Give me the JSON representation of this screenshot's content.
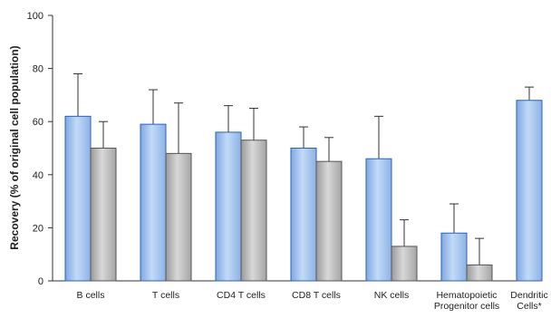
{
  "chart_data": {
    "type": "bar",
    "title": "",
    "xlabel": "",
    "ylabel": "Recovery (% of original cell population)",
    "ylim": [
      0,
      100
    ],
    "yticks": [
      0,
      20,
      40,
      60,
      80,
      100
    ],
    "grid": false,
    "categories": [
      [
        "B cells"
      ],
      [
        "T cells"
      ],
      [
        "CD4 T cells"
      ],
      [
        "CD8 T cells"
      ],
      [
        "NK cells"
      ],
      [
        "Hematopoietic",
        "Progenitor cells"
      ],
      [
        "Dendritic",
        "Cells*"
      ]
    ],
    "series": [
      {
        "color": "#a9c8f0",
        "edge": "#2a62b8",
        "values": [
          62,
          59,
          56,
          50,
          46,
          18,
          68
        ],
        "error_upper": [
          78,
          72,
          66,
          58,
          62,
          29,
          73
        ]
      },
      {
        "color": "#c4c4c4",
        "edge": "#555555",
        "values": [
          50,
          48,
          53,
          45,
          13,
          6,
          null
        ],
        "error_upper": [
          60,
          67,
          65,
          54,
          23,
          16,
          null
        ]
      }
    ]
  }
}
